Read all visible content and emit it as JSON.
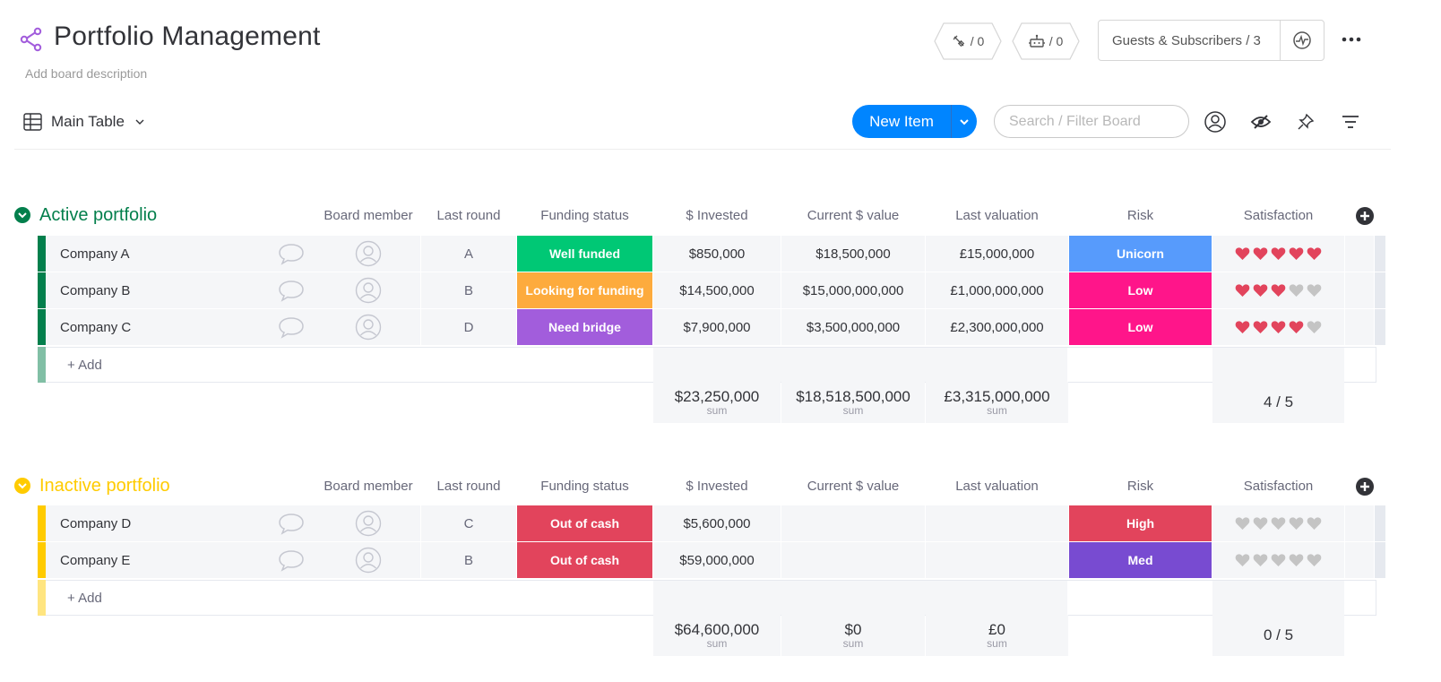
{
  "board": {
    "title": "Portfolio Management",
    "description": "Add board description"
  },
  "header": {
    "integrations_count": "/ 0",
    "automations_count": "/ 0",
    "guests_label": "Guests & Subscribers / 3"
  },
  "toolbar": {
    "view_label": "Main Table",
    "new_item_label": "New Item",
    "search_placeholder": "Search / Filter Board"
  },
  "columns": {
    "board_member": "Board member",
    "last_round": "Last round",
    "funding_status": "Funding status",
    "invested": "$ Invested",
    "current_value": "Current $ value",
    "last_valuation": "Last valuation",
    "risk": "Risk",
    "satisfaction": "Satisfaction"
  },
  "colors": {
    "accent": "#0085ff",
    "active_group": "#037f4c",
    "inactive_group": "#ffcb00",
    "heart_on": "#e2445c",
    "heart_off": "#c4c4c4"
  },
  "groups": [
    {
      "title": "Active portfolio",
      "color": "#037f4c",
      "color_light": "#81bfa5",
      "rows": [
        {
          "name": "Company A",
          "last_round": "A",
          "funding_status": "Well funded",
          "funding_color": "#00c875",
          "invested": "$850,000",
          "current_value": "$18,500,000",
          "last_valuation": "£15,000,000",
          "risk": "Unicorn",
          "risk_color": "#579bfc",
          "satisfaction": 5
        },
        {
          "name": "Company B",
          "last_round": "B",
          "funding_status": "Looking for funding",
          "funding_color": "#fdab3d",
          "invested": "$14,500,000",
          "current_value": "$15,000,000,000",
          "last_valuation": "£1,000,000,000",
          "risk": "Low",
          "risk_color": "#ff158a",
          "satisfaction": 3
        },
        {
          "name": "Company C",
          "last_round": "D",
          "funding_status": "Need bridge",
          "funding_color": "#a25ddc",
          "invested": "$7,900,000",
          "current_value": "$3,500,000,000",
          "last_valuation": "£2,300,000,000",
          "risk": "Low",
          "risk_color": "#ff158a",
          "satisfaction": 4
        }
      ],
      "add_label": "+ Add",
      "sums": {
        "invested": "$23,250,000",
        "current_value": "$18,518,500,000",
        "last_valuation": "£3,315,000,000",
        "label": "sum",
        "satisfaction": "4 / 5"
      }
    },
    {
      "title": "Inactive portfolio",
      "color": "#ffcb00",
      "color_light": "#ffe580",
      "rows": [
        {
          "name": "Company D",
          "last_round": "C",
          "funding_status": "Out of cash",
          "funding_color": "#e2445c",
          "invested": "$5,600,000",
          "current_value": "",
          "last_valuation": "",
          "risk": "High",
          "risk_color": "#e2445c",
          "satisfaction": 0
        },
        {
          "name": "Company E",
          "last_round": "B",
          "funding_status": "Out of cash",
          "funding_color": "#e2445c",
          "invested": "$59,000,000",
          "current_value": "",
          "last_valuation": "",
          "risk": "Med",
          "risk_color": "#784bd1",
          "satisfaction": 0
        }
      ],
      "add_label": "+ Add",
      "sums": {
        "invested": "$64,600,000",
        "current_value": "$0",
        "last_valuation": "£0",
        "label": "sum",
        "satisfaction": "0 / 5"
      }
    }
  ]
}
